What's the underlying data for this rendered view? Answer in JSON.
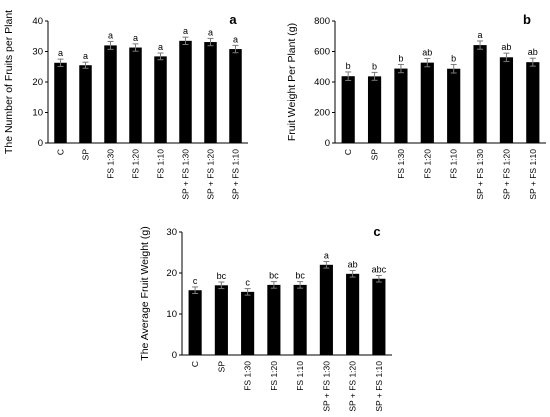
{
  "chart_data": [
    {
      "type": "bar",
      "panel_label": "a",
      "ylabel": "The Number of Fruits per Plant",
      "xlabel": "",
      "ylim": [
        0,
        40
      ],
      "yticks": [
        0,
        10,
        20,
        30,
        40
      ],
      "categories": [
        "C",
        "SP",
        "FS 1:30",
        "FS 1:20",
        "FS 1:10",
        "SP + FS 1:30",
        "SP + FS 1:20",
        "SP + FS 1:10"
      ],
      "values": [
        26.3,
        25.5,
        32,
        31.3,
        28.4,
        33.5,
        33.1,
        30.8
      ],
      "errors": [
        1.2,
        1.0,
        1.3,
        1.2,
        1.1,
        1.2,
        1.2,
        1.2
      ],
      "letters": [
        "a",
        "a",
        "a",
        "a",
        "a",
        "a",
        "a",
        "a"
      ],
      "colors": {
        "bar": "#000000"
      },
      "grid": false
    },
    {
      "type": "bar",
      "panel_label": "b",
      "ylabel": "Fruit Weight Per Plant (g)",
      "xlabel": "",
      "ylim": [
        0,
        800
      ],
      "yticks": [
        0,
        200,
        400,
        600,
        800
      ],
      "categories": [
        "C",
        "SP",
        "FS 1:30",
        "FS 1:20",
        "FS 1:10",
        "SP + FS 1:30",
        "SP + FS 1:20",
        "SP + FS 1:10"
      ],
      "values": [
        438,
        437,
        488,
        527,
        487,
        642,
        562,
        530
      ],
      "errors": [
        28,
        26,
        27,
        27,
        28,
        27,
        27,
        26
      ],
      "letters": [
        "b",
        "b",
        "b",
        "ab",
        "b",
        "a",
        "ab",
        "ab"
      ],
      "colors": {
        "bar": "#000000"
      },
      "grid": false
    },
    {
      "type": "bar",
      "panel_label": "c",
      "ylabel": "The Average Fruit Weight (g)",
      "xlabel": "",
      "ylim": [
        0,
        30
      ],
      "yticks": [
        0,
        10,
        20,
        30
      ],
      "categories": [
        "C",
        "SP",
        "FS 1:30",
        "FS 1:20",
        "FS 1:10",
        "SP + FS 1:30",
        "SP + FS 1:20",
        "SP + FS 1:10"
      ],
      "values": [
        15.8,
        17.0,
        15.4,
        17.1,
        17.1,
        22.0,
        19.8,
        18.6
      ],
      "errors": [
        0.8,
        0.8,
        0.8,
        0.8,
        0.8,
        0.8,
        0.8,
        0.8
      ],
      "letters": [
        "c",
        "bc",
        "c",
        "bc",
        "bc",
        "a",
        "ab",
        "abc"
      ],
      "colors": {
        "bar": "#000000"
      },
      "grid": false
    }
  ]
}
